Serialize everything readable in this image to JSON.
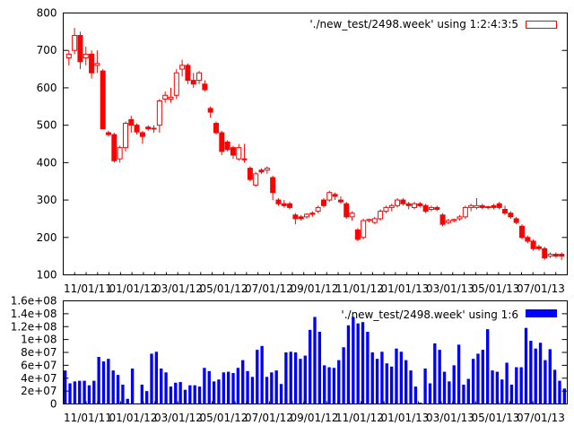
{
  "chart_data": [
    {
      "type": "candlestick",
      "legend": "'./new_test/2498.week' using 1:2:4:3:5",
      "legend_position": "top-right",
      "grid": false,
      "ylim": [
        100,
        800
      ],
      "yticks": [
        100,
        200,
        300,
        400,
        500,
        600,
        700,
        800
      ],
      "xticks": [
        "11/01/11",
        "01/01/12",
        "03/01/12",
        "05/01/12",
        "07/01/12",
        "09/01/12",
        "11/01/12",
        "01/01/13",
        "03/01/13",
        "05/01/13",
        "07/01/13"
      ],
      "colors": {
        "rising": "#ff0000",
        "falling": "#ff0000",
        "frame": "#000000"
      },
      "series": [
        {
          "open": 680,
          "high": 700,
          "low": 660,
          "close": 690
        },
        {
          "open": 700,
          "high": 760,
          "low": 690,
          "close": 740
        },
        {
          "open": 740,
          "high": 750,
          "low": 650,
          "close": 670
        },
        {
          "open": 680,
          "high": 710,
          "low": 660,
          "close": 690
        },
        {
          "open": 690,
          "high": 700,
          "low": 625,
          "close": 640
        },
        {
          "open": 660,
          "high": 700,
          "low": 640,
          "close": 665
        },
        {
          "open": 645,
          "high": 650,
          "low": 490,
          "close": 490
        },
        {
          "open": 480,
          "high": 485,
          "low": 470,
          "close": 475
        },
        {
          "open": 475,
          "high": 480,
          "low": 400,
          "close": 405
        },
        {
          "open": 410,
          "high": 445,
          "low": 400,
          "close": 440
        },
        {
          "open": 440,
          "high": 510,
          "low": 430,
          "close": 505
        },
        {
          "open": 515,
          "high": 525,
          "low": 480,
          "close": 500
        },
        {
          "open": 500,
          "high": 505,
          "low": 475,
          "close": 482
        },
        {
          "open": 480,
          "high": 485,
          "low": 450,
          "close": 470
        },
        {
          "open": 495,
          "high": 500,
          "low": 485,
          "close": 490
        },
        {
          "open": 490,
          "high": 500,
          "low": 480,
          "close": 492
        },
        {
          "open": 500,
          "high": 570,
          "low": 480,
          "close": 565
        },
        {
          "open": 570,
          "high": 590,
          "low": 560,
          "close": 580
        },
        {
          "open": 570,
          "high": 600,
          "low": 560,
          "close": 575
        },
        {
          "open": 580,
          "high": 650,
          "low": 570,
          "close": 640
        },
        {
          "open": 650,
          "high": 675,
          "low": 630,
          "close": 660
        },
        {
          "open": 660,
          "high": 665,
          "low": 610,
          "close": 620
        },
        {
          "open": 620,
          "high": 640,
          "low": 600,
          "close": 610
        },
        {
          "open": 620,
          "high": 645,
          "low": 610,
          "close": 640
        },
        {
          "open": 610,
          "high": 620,
          "low": 590,
          "close": 595
        },
        {
          "open": 545,
          "high": 550,
          "low": 520,
          "close": 535
        },
        {
          "open": 505,
          "high": 510,
          "low": 475,
          "close": 480
        },
        {
          "open": 480,
          "high": 485,
          "low": 420,
          "close": 430
        },
        {
          "open": 455,
          "high": 460,
          "low": 430,
          "close": 435
        },
        {
          "open": 440,
          "high": 445,
          "low": 410,
          "close": 420
        },
        {
          "open": 410,
          "high": 450,
          "low": 405,
          "close": 440
        },
        {
          "open": 410,
          "high": 450,
          "low": 400,
          "close": 410
        },
        {
          "open": 385,
          "high": 390,
          "low": 350,
          "close": 355
        },
        {
          "open": 340,
          "high": 375,
          "low": 335,
          "close": 370
        },
        {
          "open": 380,
          "high": 385,
          "low": 370,
          "close": 375
        },
        {
          "open": 380,
          "high": 390,
          "low": 370,
          "close": 385
        },
        {
          "open": 360,
          "high": 365,
          "low": 300,
          "close": 320
        },
        {
          "open": 300,
          "high": 305,
          "low": 285,
          "close": 290
        },
        {
          "open": 290,
          "high": 300,
          "low": 280,
          "close": 285
        },
        {
          "open": 290,
          "high": 295,
          "low": 275,
          "close": 280
        },
        {
          "open": 260,
          "high": 265,
          "low": 235,
          "close": 250
        },
        {
          "open": 255,
          "high": 260,
          "low": 245,
          "close": 250
        },
        {
          "open": 255,
          "high": 265,
          "low": 250,
          "close": 262
        },
        {
          "open": 265,
          "high": 270,
          "low": 255,
          "close": 262
        },
        {
          "open": 270,
          "high": 285,
          "low": 265,
          "close": 280
        },
        {
          "open": 300,
          "high": 305,
          "low": 280,
          "close": 285
        },
        {
          "open": 300,
          "high": 325,
          "low": 295,
          "close": 320
        },
        {
          "open": 315,
          "high": 320,
          "low": 300,
          "close": 310
        },
        {
          "open": 300,
          "high": 310,
          "low": 290,
          "close": 295
        },
        {
          "open": 290,
          "high": 295,
          "low": 250,
          "close": 255
        },
        {
          "open": 255,
          "high": 270,
          "low": 245,
          "close": 265
        },
        {
          "open": 220,
          "high": 225,
          "low": 190,
          "close": 195
        },
        {
          "open": 200,
          "high": 250,
          "low": 195,
          "close": 245
        },
        {
          "open": 245,
          "high": 250,
          "low": 240,
          "close": 248
        },
        {
          "open": 240,
          "high": 255,
          "low": 235,
          "close": 250
        },
        {
          "open": 250,
          "high": 275,
          "low": 245,
          "close": 270
        },
        {
          "open": 270,
          "high": 285,
          "low": 265,
          "close": 280
        },
        {
          "open": 280,
          "high": 290,
          "low": 270,
          "close": 285
        },
        {
          "open": 285,
          "high": 305,
          "low": 280,
          "close": 300
        },
        {
          "open": 300,
          "high": 305,
          "low": 285,
          "close": 290
        },
        {
          "open": 290,
          "high": 295,
          "low": 275,
          "close": 285
        },
        {
          "open": 280,
          "high": 295,
          "low": 275,
          "close": 290
        },
        {
          "open": 290,
          "high": 295,
          "low": 280,
          "close": 285
        },
        {
          "open": 285,
          "high": 290,
          "low": 265,
          "close": 270
        },
        {
          "open": 275,
          "high": 285,
          "low": 270,
          "close": 280
        },
        {
          "open": 280,
          "high": 285,
          "low": 270,
          "close": 275
        },
        {
          "open": 260,
          "high": 265,
          "low": 230,
          "close": 235
        },
        {
          "open": 240,
          "high": 250,
          "low": 235,
          "close": 245
        },
        {
          "open": 245,
          "high": 250,
          "low": 240,
          "close": 248
        },
        {
          "open": 250,
          "high": 260,
          "low": 245,
          "close": 255
        },
        {
          "open": 255,
          "high": 285,
          "low": 250,
          "close": 280
        },
        {
          "open": 280,
          "high": 290,
          "low": 270,
          "close": 285
        },
        {
          "open": 280,
          "high": 305,
          "low": 275,
          "close": 285
        },
        {
          "open": 285,
          "high": 290,
          "low": 275,
          "close": 280
        },
        {
          "open": 280,
          "high": 285,
          "low": 275,
          "close": 282
        },
        {
          "open": 285,
          "high": 290,
          "low": 275,
          "close": 280
        },
        {
          "open": 290,
          "high": 295,
          "low": 275,
          "close": 280
        },
        {
          "open": 275,
          "high": 285,
          "low": 260,
          "close": 265
        },
        {
          "open": 265,
          "high": 270,
          "low": 250,
          "close": 255
        },
        {
          "open": 250,
          "high": 255,
          "low": 235,
          "close": 240
        },
        {
          "open": 230,
          "high": 235,
          "low": 195,
          "close": 200
        },
        {
          "open": 200,
          "high": 205,
          "low": 185,
          "close": 190
        },
        {
          "open": 190,
          "high": 195,
          "low": 165,
          "close": 170
        },
        {
          "open": 175,
          "high": 180,
          "low": 165,
          "close": 170
        },
        {
          "open": 170,
          "high": 175,
          "low": 140,
          "close": 145
        },
        {
          "open": 150,
          "high": 160,
          "low": 145,
          "close": 155
        },
        {
          "open": 155,
          "high": 160,
          "low": 145,
          "close": 150
        },
        {
          "open": 155,
          "high": 160,
          "low": 140,
          "close": 150
        }
      ]
    },
    {
      "type": "bar",
      "legend": "'./new_test/2498.week' using 1:6",
      "legend_position": "top-right",
      "grid": false,
      "ylim": [
        0,
        160000000
      ],
      "yticks": [
        0,
        20000000,
        40000000,
        60000000,
        80000000,
        100000000,
        120000000,
        140000000,
        160000000
      ],
      "ytick_labels": [
        "0",
        "2e+07",
        "4e+07",
        "6e+07",
        "8e+07",
        "1e+08",
        "1.2e+08",
        "1.4e+08",
        "1.6e+08"
      ],
      "xticks": [
        "11/01/11",
        "01/01/12",
        "03/01/12",
        "05/01/12",
        "07/01/12",
        "09/01/12",
        "11/01/12",
        "01/01/13",
        "03/01/13",
        "05/01/13",
        "07/01/13"
      ],
      "colors": {
        "bar": "#0000ff"
      },
      "values": [
        52000000,
        32000000,
        35000000,
        36000000,
        36000000,
        29000000,
        36000000,
        73000000,
        66000000,
        70000000,
        52000000,
        45000000,
        30000000,
        8000000,
        55000000,
        1000000,
        30000000,
        20000000,
        78000000,
        81000000,
        55000000,
        49000000,
        27000000,
        33000000,
        34000000,
        22000000,
        29000000,
        29000000,
        27000000,
        56000000,
        51000000,
        35000000,
        38000000,
        49000000,
        50000000,
        48000000,
        56000000,
        68000000,
        51000000,
        42000000,
        84000000,
        90000000,
        42000000,
        49000000,
        52000000,
        31000000,
        80000000,
        81000000,
        80000000,
        70000000,
        75000000,
        115000000,
        135000000,
        112000000,
        60000000,
        57000000,
        56000000,
        68000000,
        88000000,
        122000000,
        135000000,
        125000000,
        127000000,
        112000000,
        80000000,
        70000000,
        81000000,
        63000000,
        58000000,
        86000000,
        81000000,
        68000000,
        52000000,
        27000000,
        2000000,
        55000000,
        32000000,
        94000000,
        84000000,
        50000000,
        35000000,
        60000000,
        92000000,
        30000000,
        39000000,
        70000000,
        78000000,
        84000000,
        116000000,
        52000000,
        50000000,
        38000000,
        64000000,
        30000000,
        57000000,
        57000000,
        118000000,
        98000000,
        86000000,
        95000000,
        68000000,
        85000000,
        53000000,
        36000000,
        24000000
      ]
    }
  ]
}
